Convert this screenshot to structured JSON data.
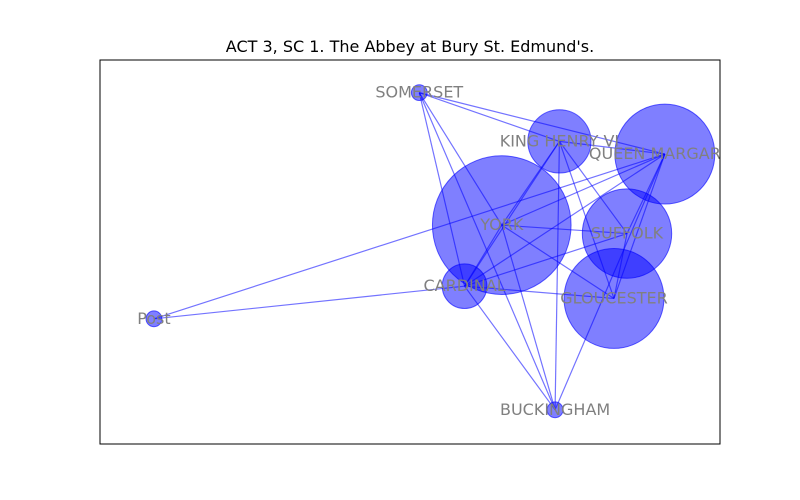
{
  "title": "ACT 3, SC 1. The Abbey at Bury St. Edmund's.",
  "colors": {
    "node": "#0000ff",
    "edge": "#0000ff",
    "label": "#808080",
    "frame": "#000000"
  },
  "chart_data": {
    "type": "network",
    "title": "ACT 3, SC 1. The Abbey at Bury St. Edmund's.",
    "nodes": [
      {
        "id": "SOMERSET",
        "label": "SOMERSET",
        "x": 0.515,
        "y": 0.915,
        "size": 1
      },
      {
        "id": "KING HENRY VI",
        "label": "KING HENRY VI",
        "x": 0.741,
        "y": 0.788,
        "size": 16
      },
      {
        "id": "QUEEN MARGARET",
        "label": "QUEEN MARGARET",
        "x": 0.911,
        "y": 0.755,
        "size": 40
      },
      {
        "id": "YORK",
        "label": "YORK",
        "x": 0.648,
        "y": 0.57,
        "size": 77
      },
      {
        "id": "SUFFOLK",
        "label": "SUFFOLK",
        "x": 0.85,
        "y": 0.548,
        "size": 32
      },
      {
        "id": "CARDINAL",
        "label": "CARDINAL",
        "x": 0.588,
        "y": 0.411,
        "size": 8
      },
      {
        "id": "GLOUCESTER",
        "label": "GLOUCESTER",
        "x": 0.829,
        "y": 0.379,
        "size": 40
      },
      {
        "id": "Post",
        "label": "Post",
        "x": 0.087,
        "y": 0.326,
        "size": 1
      },
      {
        "id": "BUCKINGHAM",
        "label": "BUCKINGHAM",
        "x": 0.734,
        "y": 0.089,
        "size": 1
      }
    ],
    "edges": [
      [
        "SOMERSET",
        "KING HENRY VI"
      ],
      [
        "SOMERSET",
        "QUEEN MARGARET"
      ],
      [
        "SOMERSET",
        "YORK"
      ],
      [
        "SOMERSET",
        "CARDINAL"
      ],
      [
        "SOMERSET",
        "BUCKINGHAM"
      ],
      [
        "KING HENRY VI",
        "QUEEN MARGARET"
      ],
      [
        "KING HENRY VI",
        "YORK"
      ],
      [
        "KING HENRY VI",
        "SUFFOLK"
      ],
      [
        "KING HENRY VI",
        "CARDINAL"
      ],
      [
        "KING HENRY VI",
        "GLOUCESTER"
      ],
      [
        "KING HENRY VI",
        "BUCKINGHAM"
      ],
      [
        "QUEEN MARGARET",
        "YORK"
      ],
      [
        "QUEEN MARGARET",
        "SUFFOLK"
      ],
      [
        "QUEEN MARGARET",
        "CARDINAL"
      ],
      [
        "QUEEN MARGARET",
        "GLOUCESTER"
      ],
      [
        "QUEEN MARGARET",
        "BUCKINGHAM"
      ],
      [
        "QUEEN MARGARET",
        "Post"
      ],
      [
        "YORK",
        "SUFFOLK"
      ],
      [
        "YORK",
        "CARDINAL"
      ],
      [
        "YORK",
        "GLOUCESTER"
      ],
      [
        "YORK",
        "BUCKINGHAM"
      ],
      [
        "SUFFOLK",
        "CARDINAL"
      ],
      [
        "SUFFOLK",
        "GLOUCESTER"
      ],
      [
        "CARDINAL",
        "GLOUCESTER"
      ],
      [
        "CARDINAL",
        "BUCKINGHAM"
      ],
      [
        "CARDINAL",
        "Post"
      ]
    ]
  }
}
